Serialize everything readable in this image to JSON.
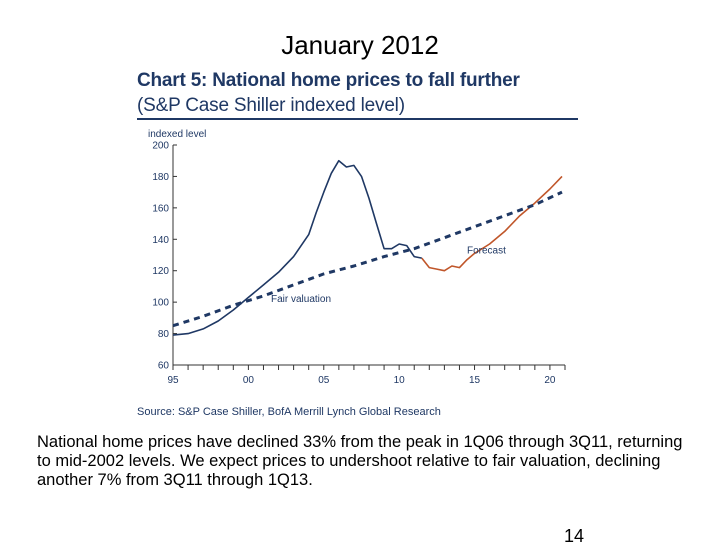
{
  "slide": {
    "title": "January 2012",
    "caption": "National home prices have declined 33% from the peak in 1Q06 through 3Q11, returning to mid-2002 levels.  We expect prices to undershoot relative to fair valuation, declining another 7% from 3Q11 through 1Q13.",
    "page_number": "14"
  },
  "chart_data": {
    "type": "line",
    "title": "Chart 5: National home prices to fall further",
    "subtitle": "(S&P Case Shiller indexed level)",
    "ylabel": "indexed level",
    "source": "Source: S&P  Case Shiller, BofA Merrill Lynch Global Research",
    "xlim": [
      1995,
      2021
    ],
    "ylim": [
      60,
      200
    ],
    "x_tick_labels": [
      "95",
      "00",
      "05",
      "10",
      "15",
      "20"
    ],
    "x_ticks": [
      1995,
      2000,
      2005,
      2010,
      2015,
      2020
    ],
    "y_ticks": [
      60,
      80,
      100,
      120,
      140,
      160,
      180,
      200
    ],
    "grid": false,
    "series": [
      {
        "name": "",
        "color": "#1f3864",
        "style": "solid",
        "points": [
          [
            1995,
            79
          ],
          [
            1996,
            80
          ],
          [
            1997,
            83
          ],
          [
            1998,
            88
          ],
          [
            1999,
            95
          ],
          [
            2000,
            103
          ],
          [
            2001,
            111
          ],
          [
            2002,
            119
          ],
          [
            2003,
            129
          ],
          [
            2004,
            143
          ],
          [
            2004.5,
            157
          ],
          [
            2005,
            170
          ],
          [
            2005.5,
            182
          ],
          [
            2006,
            190
          ],
          [
            2006.5,
            186
          ],
          [
            2007,
            187
          ],
          [
            2007.5,
            180
          ],
          [
            2008,
            166
          ],
          [
            2008.5,
            150
          ],
          [
            2009,
            134
          ],
          [
            2009.5,
            134
          ],
          [
            2010,
            137
          ],
          [
            2010.5,
            136
          ],
          [
            2011,
            129
          ],
          [
            2011.5,
            128
          ]
        ]
      },
      {
        "name": "Forecast",
        "color": "#c0562a",
        "style": "solid",
        "points": [
          [
            2011.5,
            128
          ],
          [
            2012,
            122
          ],
          [
            2012.5,
            121
          ],
          [
            2013,
            120
          ],
          [
            2013.5,
            123
          ],
          [
            2014,
            122
          ],
          [
            2014.5,
            127
          ],
          [
            2015,
            131
          ],
          [
            2016,
            137
          ],
          [
            2017,
            145
          ],
          [
            2018,
            155
          ],
          [
            2019,
            163
          ],
          [
            2020,
            172
          ],
          [
            2020.8,
            180
          ]
        ]
      },
      {
        "name": "Fair valuation",
        "color": "#1f3864",
        "style": "dashed",
        "points": [
          [
            1995,
            85
          ],
          [
            1997,
            91
          ],
          [
            1999,
            98
          ],
          [
            2001,
            104
          ],
          [
            2003,
            111
          ],
          [
            2005,
            118
          ],
          [
            2007,
            123
          ],
          [
            2009,
            129
          ],
          [
            2011,
            134
          ],
          [
            2013,
            141
          ],
          [
            2015,
            148
          ],
          [
            2017,
            155
          ],
          [
            2019,
            162
          ],
          [
            2020.8,
            170
          ]
        ]
      }
    ],
    "annotations": [
      {
        "text": "Forecast",
        "x": 2014.5,
        "y": 131
      },
      {
        "text": "Fair valuation",
        "x": 2001.5,
        "y": 100
      }
    ]
  }
}
